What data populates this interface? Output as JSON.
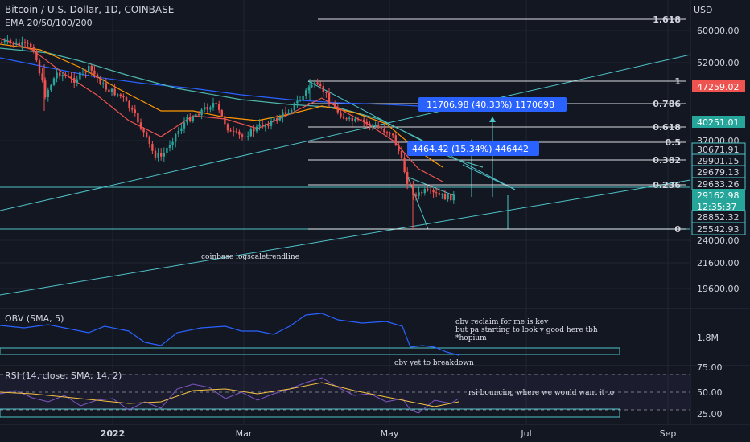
{
  "header": {
    "title": "Bitcoin / U.S. Dollar, 1D, COINBASE",
    "indicator": "EMA 20/50/100/200"
  },
  "currency": "USD",
  "colors": {
    "background": "#131722",
    "candle_up": "#26a69a",
    "candle_down": "#ef5350",
    "price_label": "#26a69a",
    "annotation_box": "#2962ff",
    "fib_line": "#ffffff",
    "trendline": "#4fc3c8",
    "obv_line": "#2962ff",
    "rsi_line": "#7e57c2",
    "rsi_ma": "#f5c242"
  },
  "chart_data": {
    "type": "candlestick",
    "symbol": "BTCUSD",
    "interval": "1D",
    "scale": "log",
    "price_ticks": [
      "60000.00",
      "52000.00",
      "37000.00",
      "24000.00",
      "21600.00",
      "19600.00"
    ],
    "price_labels": [
      "47259.02",
      "40251.01",
      "30671.91",
      "29901.15",
      "29679.13",
      "29633.26",
      "29162.98",
      "12:35:37",
      "28852.32",
      "25542.93"
    ],
    "x_ticks": [
      "2022",
      "Mar",
      "May",
      "Jul",
      "Sep"
    ],
    "fib_levels": [
      {
        "label": "1.618"
      },
      {
        "label": "1"
      },
      {
        "label": "0.786"
      },
      {
        "label": "0.618"
      },
      {
        "label": "0.5"
      },
      {
        "label": "0.382"
      },
      {
        "label": "0.236"
      },
      {
        "label": "0"
      }
    ],
    "measure_boxes": [
      {
        "text": "11706.98 (40.33%) 1170698"
      },
      {
        "text": "4464.42 (15.34%) 446442"
      }
    ],
    "annotations": {
      "trendline": "coinbase logscaletrendline",
      "obv_1": "obv reclaim for me is key",
      "obv_2": "but pa starting to look v good here tbh",
      "obv_3": "*hopium",
      "obv_4": "obv yet to breakdown",
      "rsi_1": "rsi bouncing where we would want it to"
    },
    "obv": {
      "label": "OBV (SMA, 5)",
      "tick": "1.8M"
    },
    "rsi": {
      "label": "RSI (14, close, SMA, 14, 2)",
      "ticks": [
        "75.00",
        "50.00",
        "25.00"
      ]
    },
    "current_price": "29162.98"
  }
}
